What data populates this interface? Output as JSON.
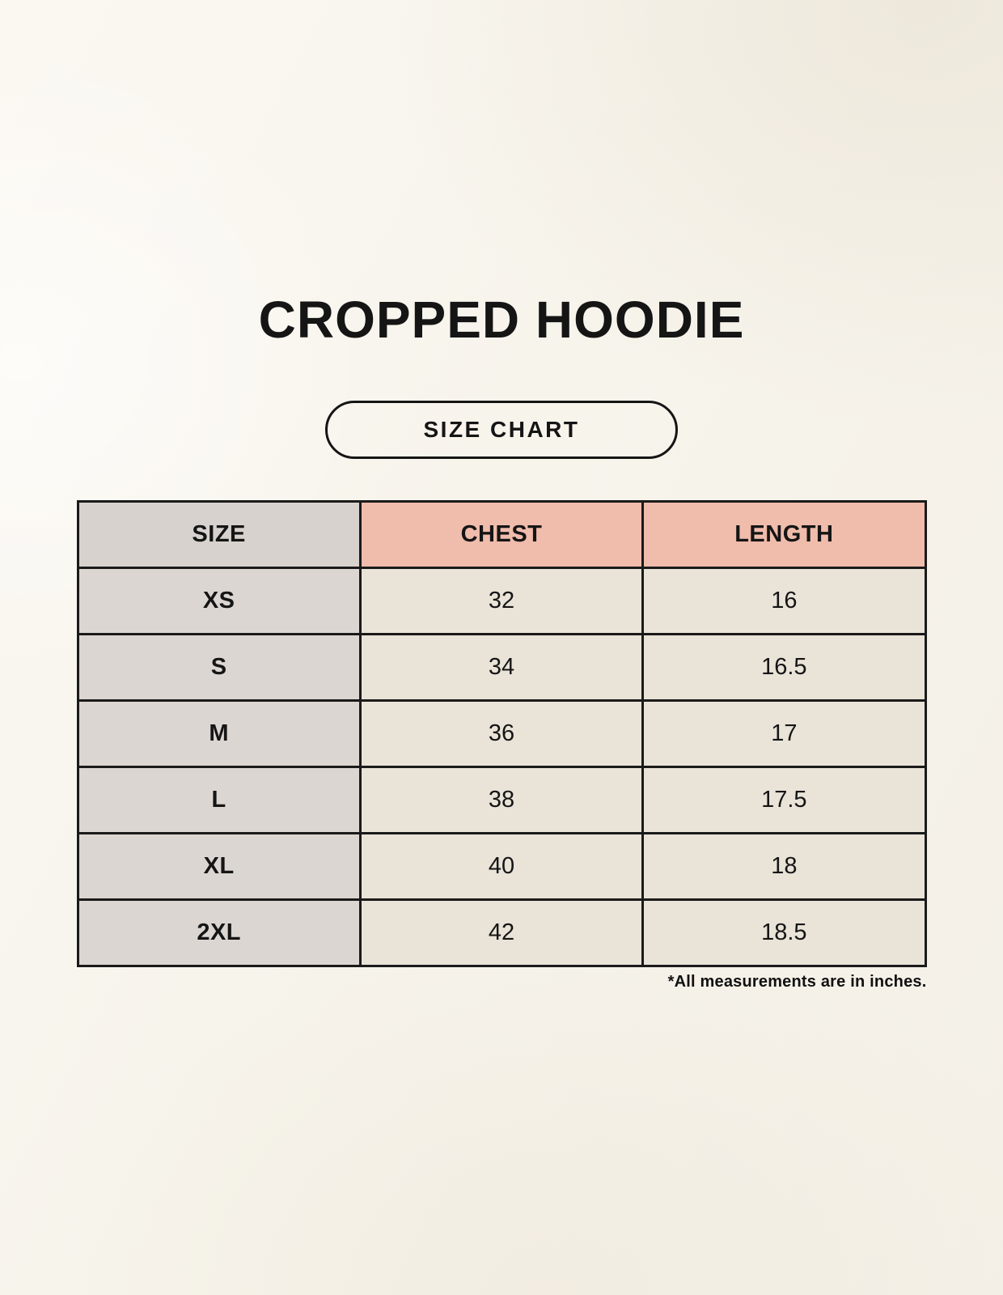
{
  "page": {
    "title": "CROPPED HOODIE",
    "size_chart_button_label": "SIZE CHART",
    "footnote": "*All measurements are in inches."
  },
  "colors": {
    "background": "#f7f4ec",
    "text": "#151515",
    "border": "#1a1a1a",
    "header_size_bg": "#d7d2ce",
    "header_measure_bg": "#f0bcab",
    "row_label_bg": "#dcd6d2",
    "row_value_bg": "#e9e3d8"
  },
  "table": {
    "headers": [
      "SIZE",
      "CHEST",
      "LENGTH"
    ],
    "rows": [
      {
        "size": "XS",
        "chest": "32",
        "length": "16"
      },
      {
        "size": "S",
        "chest": "34",
        "length": "16.5"
      },
      {
        "size": "M",
        "chest": "36",
        "length": "17"
      },
      {
        "size": "L",
        "chest": "38",
        "length": "17.5"
      },
      {
        "size": "XL",
        "chest": "40",
        "length": "18"
      },
      {
        "size": "2XL",
        "chest": "42",
        "length": "18.5"
      }
    ]
  },
  "chart_data": {
    "type": "table",
    "title": "CROPPED HOODIE",
    "columns": [
      "SIZE",
      "CHEST",
      "LENGTH"
    ],
    "rows": [
      [
        "XS",
        "32",
        "16"
      ],
      [
        "S",
        "34",
        "16.5"
      ],
      [
        "M",
        "36",
        "17"
      ],
      [
        "L",
        "38",
        "17.5"
      ],
      [
        "XL",
        "40",
        "18"
      ],
      [
        "2XL",
        "42",
        "18.5"
      ]
    ],
    "footnote": "*All measurements are in inches."
  }
}
